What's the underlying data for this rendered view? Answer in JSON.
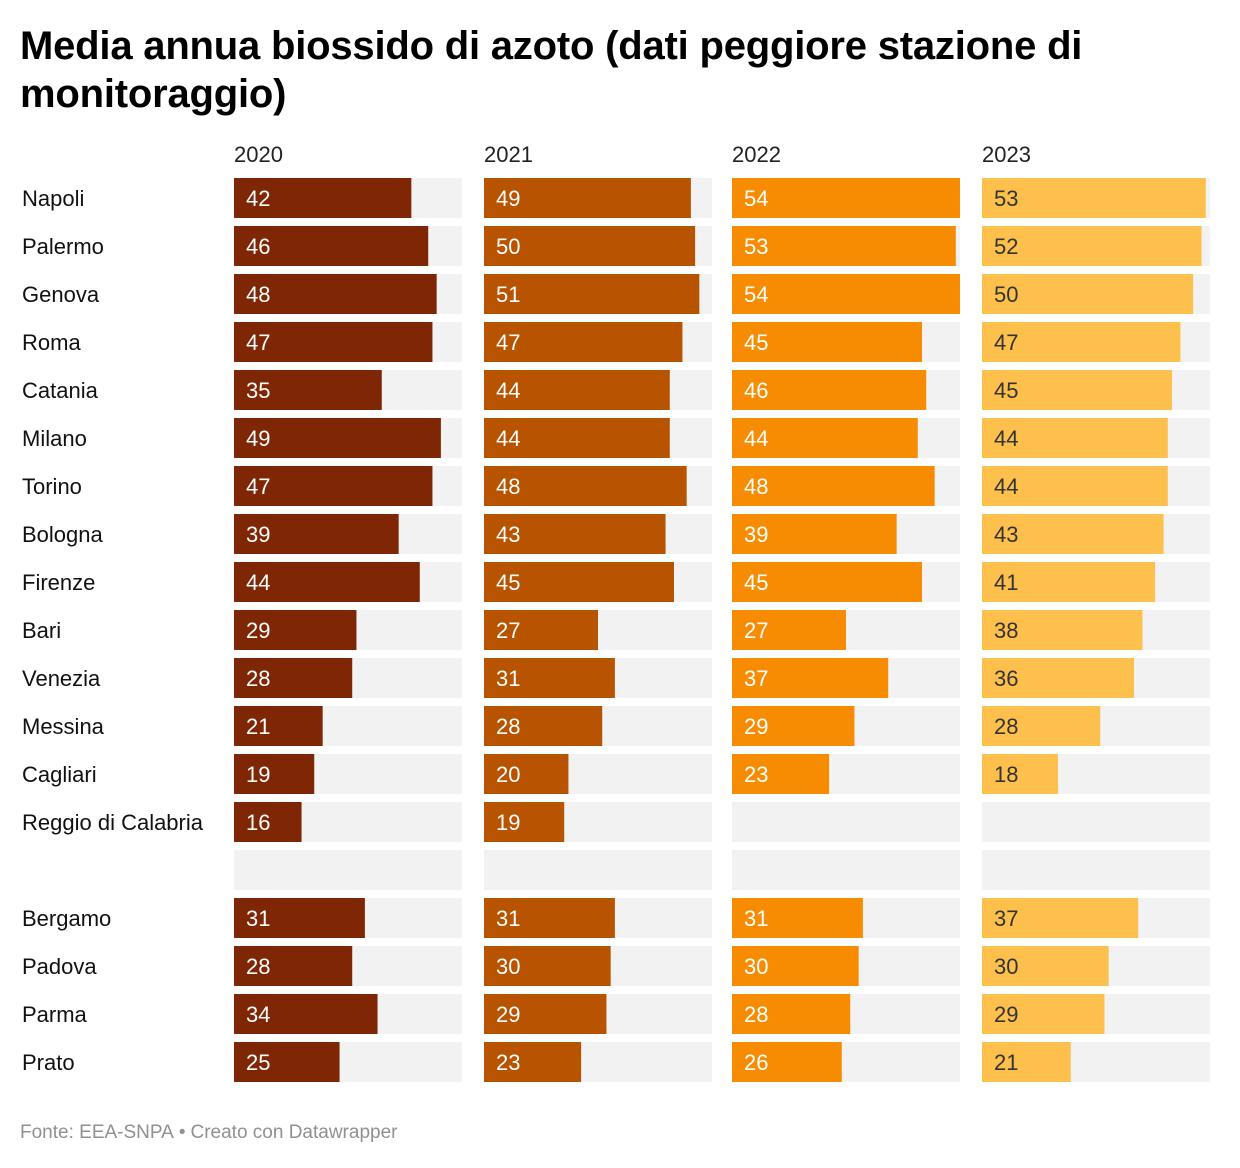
{
  "title": "Media annua biossido di azoto (dati peggiore stazione di monitoraggio)",
  "footer": {
    "source": "Fonte: EEA-SNPA",
    "separator": "•",
    "credit": "Creato con Datawrapper"
  },
  "colors": {
    "2020": "#7f2704",
    "2021": "#b85300",
    "2022": "#f78c02",
    "2023": "#fdc04c",
    "track": "#f2f2f2",
    "label_dark_bg": "#ffffff",
    "label_light_bg": "#333333"
  },
  "chart_data": {
    "type": "bar",
    "orientation": "horizontal",
    "layout": "small-multiples",
    "title": "Media annua biossido di azoto (dati peggiore stazione di monitoraggio)",
    "xlim": [
      0,
      54
    ],
    "grid": false,
    "legend": "none",
    "series_labels": [
      "2020",
      "2021",
      "2022",
      "2023"
    ],
    "categories": [
      "Napoli",
      "Palermo",
      "Genova",
      "Roma",
      "Catania",
      "Milano",
      "Torino",
      "Bologna",
      "Firenze",
      "Bari",
      "Venezia",
      "Messina",
      "Cagliari",
      "Reggio di Calabria",
      "",
      "Bergamo",
      "Padova",
      "Parma",
      "Prato"
    ],
    "series": [
      {
        "name": "2020",
        "values": [
          42,
          46,
          48,
          47,
          35,
          49,
          47,
          39,
          44,
          29,
          28,
          21,
          19,
          16,
          null,
          31,
          28,
          34,
          25
        ]
      },
      {
        "name": "2021",
        "values": [
          49,
          50,
          51,
          47,
          44,
          44,
          48,
          43,
          45,
          27,
          31,
          28,
          20,
          19,
          null,
          31,
          30,
          29,
          23
        ]
      },
      {
        "name": "2022",
        "values": [
          54,
          53,
          54,
          45,
          46,
          44,
          48,
          39,
          45,
          27,
          37,
          29,
          23,
          null,
          null,
          31,
          30,
          28,
          26
        ]
      },
      {
        "name": "2023",
        "values": [
          53,
          52,
          50,
          47,
          45,
          44,
          44,
          43,
          41,
          38,
          36,
          28,
          18,
          null,
          null,
          37,
          30,
          29,
          21
        ]
      }
    ]
  }
}
